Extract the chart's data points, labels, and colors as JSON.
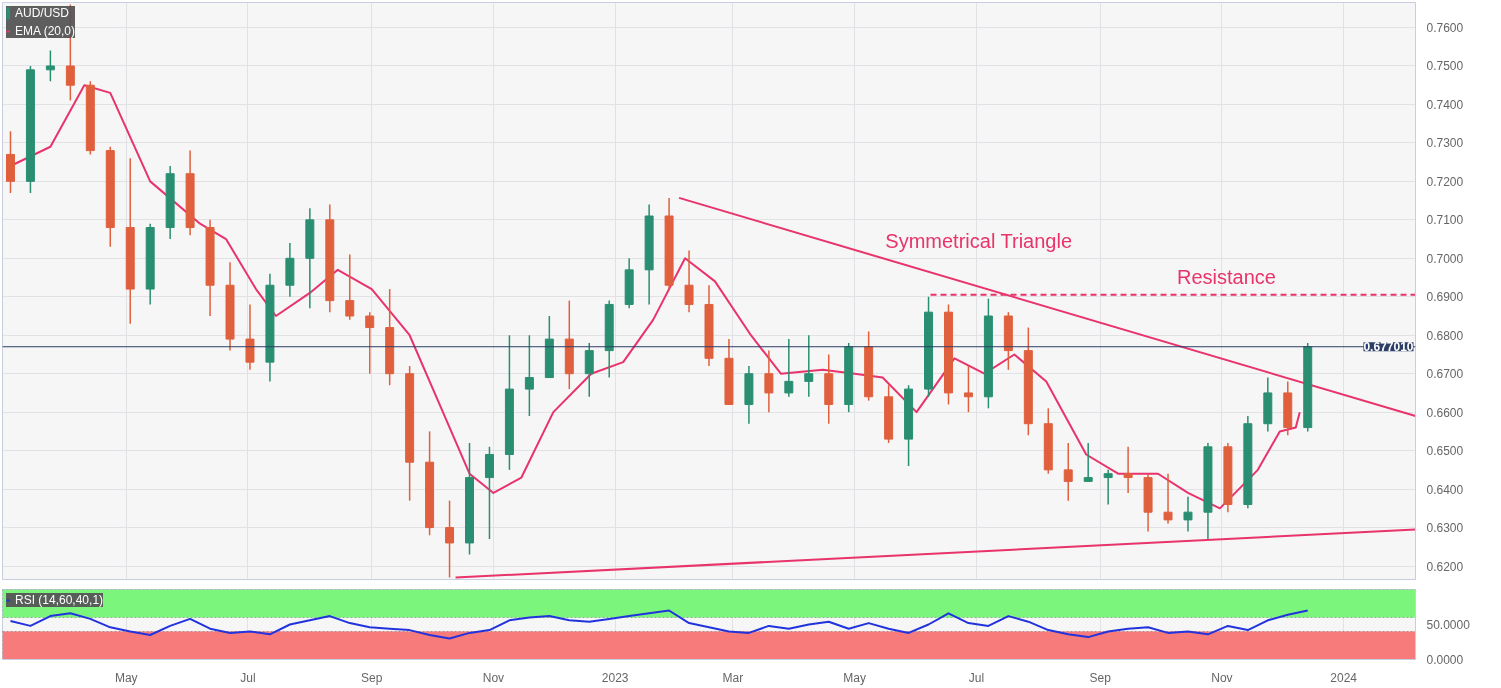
{
  "chart_data": [
    {
      "type": "candlestick",
      "legend": "top left",
      "grid": true,
      "tick_labels": "y",
      "xlim": [
        "2022-02-28",
        "2024-02-06"
      ],
      "ylim": [
        0.6165,
        0.7665
      ],
      "yticks": [
        {
          "value": 0.62,
          "label": "0.6200"
        },
        {
          "value": 0.63,
          "label": "0.6300"
        },
        {
          "value": 0.64,
          "label": "0.6400"
        },
        {
          "value": 0.65,
          "label": "0.6500"
        },
        {
          "value": 0.66,
          "label": "0.6600"
        },
        {
          "value": 0.67,
          "label": "0.6700"
        },
        {
          "value": 0.68,
          "label": "0.6800"
        },
        {
          "value": 0.69,
          "label": "0.6900"
        },
        {
          "value": 0.7,
          "label": "0.7000"
        },
        {
          "value": 0.71,
          "label": "0.7100"
        },
        {
          "value": 0.72,
          "label": "0.7200"
        },
        {
          "value": 0.73,
          "label": "0.7300"
        },
        {
          "value": 0.74,
          "label": "0.7400"
        },
        {
          "value": 0.75,
          "label": "0.7500"
        },
        {
          "value": 0.76,
          "label": "0.7600"
        }
      ],
      "xticks": [
        {
          "value": "2022-05-01",
          "label": null
        },
        {
          "value": "2022-07-01",
          "label": null
        },
        {
          "value": "2022-09-01",
          "label": null
        },
        {
          "value": "2022-11-01",
          "label": null
        },
        {
          "value": "2023-01-01",
          "label": null
        },
        {
          "value": "2023-03-01",
          "label": null
        },
        {
          "value": "2023-05-01",
          "label": null
        },
        {
          "value": "2023-07-01",
          "label": null
        },
        {
          "value": "2023-09-01",
          "label": null
        },
        {
          "value": "2023-11-01",
          "label": null
        },
        {
          "value": "2024-01-01",
          "label": null
        }
      ],
      "ref_lines": [
        {
          "axis": "y",
          "value": 0.67701,
          "label": "0.677010",
          "color": "#2c3e66"
        }
      ],
      "annotations": [
        "Symmetrical Triangle",
        "Resistance"
      ],
      "series": [
        {
          "type": "candlestick",
          "name": "AUD/USD",
          "color": "#2a8f72",
          "x": [
            "2022-03-04",
            "2022-03-14",
            "2022-03-24",
            "2022-04-03",
            "2022-04-13",
            "2022-04-23",
            "2022-05-03",
            "2022-05-13",
            "2022-05-23",
            "2022-06-02",
            "2022-06-12",
            "2022-06-22",
            "2022-07-02",
            "2022-07-12",
            "2022-07-22",
            "2022-08-01",
            "2022-08-11",
            "2022-08-21",
            "2022-08-31",
            "2022-09-10",
            "2022-09-20",
            "2022-09-30",
            "2022-10-10",
            "2022-10-20",
            "2022-10-30",
            "2022-11-09",
            "2022-11-19",
            "2022-11-29",
            "2022-12-09",
            "2022-12-19",
            "2022-12-29",
            "2023-01-08",
            "2023-01-18",
            "2023-01-28",
            "2023-02-07",
            "2023-02-17",
            "2023-02-27",
            "2023-03-09",
            "2023-03-19",
            "2023-03-29",
            "2023-04-08",
            "2023-04-18",
            "2023-04-28",
            "2023-05-08",
            "2023-05-18",
            "2023-05-28",
            "2023-06-07",
            "2023-06-17",
            "2023-06-27",
            "2023-07-07",
            "2023-07-17",
            "2023-07-27",
            "2023-08-06",
            "2023-08-16",
            "2023-08-26",
            "2023-09-05",
            "2023-09-15",
            "2023-09-25",
            "2023-10-05",
            "2023-10-15",
            "2023-10-25",
            "2023-11-04",
            "2023-11-14",
            "2023-11-24",
            "2023-12-04",
            "2023-12-14"
          ],
          "ohlc": [
            [
              0.727,
              0.733,
              0.717,
              0.72
            ],
            [
              0.72,
              0.75,
              0.717,
              0.749
            ],
            [
              0.749,
              0.754,
              0.746,
              0.75
            ],
            [
              0.75,
              0.766,
              0.741,
              0.745
            ],
            [
              0.745,
              0.746,
              0.727,
              0.728
            ],
            [
              0.728,
              0.729,
              0.703,
              0.708
            ],
            [
              0.708,
              0.726,
              0.683,
              0.692
            ],
            [
              0.692,
              0.709,
              0.688,
              0.708
            ],
            [
              0.708,
              0.724,
              0.705,
              0.722
            ],
            [
              0.722,
              0.728,
              0.706,
              0.708
            ],
            [
              0.708,
              0.71,
              0.685,
              0.693
            ],
            [
              0.693,
              0.699,
              0.676,
              0.679
            ],
            [
              0.679,
              0.688,
              0.671,
              0.673
            ],
            [
              0.673,
              0.696,
              0.668,
              0.693
            ],
            [
              0.693,
              0.704,
              0.69,
              0.7
            ],
            [
              0.7,
              0.713,
              0.687,
              0.71
            ],
            [
              0.71,
              0.714,
              0.686,
              0.689
            ],
            [
              0.689,
              0.701,
              0.684,
              0.685
            ],
            [
              0.685,
              0.686,
              0.67,
              0.682
            ],
            [
              0.682,
              0.692,
              0.667,
              0.67
            ],
            [
              0.67,
              0.672,
              0.637,
              0.647
            ],
            [
              0.647,
              0.655,
              0.628,
              0.63
            ],
            [
              0.63,
              0.637,
              0.617,
              0.626
            ],
            [
              0.626,
              0.652,
              0.623,
              0.643
            ],
            [
              0.643,
              0.651,
              0.627,
              0.649
            ],
            [
              0.649,
              0.68,
              0.645,
              0.666
            ],
            [
              0.666,
              0.68,
              0.659,
              0.669
            ],
            [
              0.669,
              0.685,
              0.669,
              0.679
            ],
            [
              0.679,
              0.689,
              0.666,
              0.67
            ],
            [
              0.67,
              0.678,
              0.664,
              0.676
            ],
            [
              0.676,
              0.689,
              0.669,
              0.688
            ],
            [
              0.688,
              0.7,
              0.687,
              0.697
            ],
            [
              0.697,
              0.714,
              0.688,
              0.711
            ],
            [
              0.711,
              0.7157,
              0.692,
              0.693
            ],
            [
              0.693,
              0.702,
              0.686,
              0.688
            ],
            [
              0.688,
              0.693,
              0.672,
              0.674
            ],
            [
              0.674,
              0.679,
              0.662,
              0.662
            ],
            [
              0.662,
              0.672,
              0.657,
              0.67
            ],
            [
              0.67,
              0.676,
              0.66,
              0.665
            ],
            [
              0.665,
              0.679,
              0.664,
              0.668
            ],
            [
              0.668,
              0.68,
              0.664,
              0.67
            ],
            [
              0.67,
              0.675,
              0.657,
              0.662
            ],
            [
              0.662,
              0.678,
              0.66,
              0.677
            ],
            [
              0.677,
              0.681,
              0.663,
              0.664
            ],
            [
              0.664,
              0.667,
              0.652,
              0.653
            ],
            [
              0.653,
              0.667,
              0.646,
              0.666
            ],
            [
              0.666,
              0.69,
              0.664,
              0.686
            ],
            [
              0.686,
              0.688,
              0.662,
              0.665
            ],
            [
              0.665,
              0.672,
              0.66,
              0.664
            ],
            [
              0.664,
              0.6895,
              0.661,
              0.685
            ],
            [
              0.685,
              0.686,
              0.671,
              0.676
            ],
            [
              0.676,
              0.682,
              0.654,
              0.657
            ],
            [
              0.657,
              0.661,
              0.644,
              0.645
            ],
            [
              0.645,
              0.652,
              0.637,
              0.642
            ],
            [
              0.642,
              0.652,
              0.642,
              0.643
            ],
            [
              0.643,
              0.645,
              0.636,
              0.644
            ],
            [
              0.644,
              0.651,
              0.639,
              0.643
            ],
            [
              0.643,
              0.644,
              0.629,
              0.634
            ],
            [
              0.634,
              0.644,
              0.631,
              0.632
            ],
            [
              0.632,
              0.638,
              0.629,
              0.634
            ],
            [
              0.634,
              0.652,
              0.627,
              0.651
            ],
            [
              0.651,
              0.652,
              0.634,
              0.636
            ],
            [
              0.636,
              0.659,
              0.635,
              0.657
            ],
            [
              0.657,
              0.669,
              0.655,
              0.665
            ],
            [
              0.665,
              0.668,
              0.654,
              0.656
            ],
            [
              0.656,
              0.678,
              0.655,
              0.677
            ]
          ],
          "colors": [
            "#e0603e",
            "#2a8f72",
            "#2a8f72",
            "#e0603e",
            "#e0603e",
            "#e0603e",
            "#e0603e",
            "#2a8f72",
            "#2a8f72",
            "#e0603e",
            "#e0603e",
            "#e0603e",
            "#e0603e",
            "#2a8f72",
            "#2a8f72",
            "#2a8f72",
            "#e0603e",
            "#e0603e",
            "#e0603e",
            "#e0603e",
            "#e0603e",
            "#e0603e",
            "#e0603e",
            "#2a8f72",
            "#2a8f72",
            "#2a8f72",
            "#2a8f72",
            "#2a8f72",
            "#e0603e",
            "#2a8f72",
            "#2a8f72",
            "#2a8f72",
            "#2a8f72",
            "#e0603e",
            "#e0603e",
            "#e0603e",
            "#e0603e",
            "#2a8f72",
            "#e0603e",
            "#2a8f72",
            "#2a8f72",
            "#e0603e",
            "#2a8f72",
            "#e0603e",
            "#e0603e",
            "#2a8f72",
            "#2a8f72",
            "#e0603e",
            "#e0603e",
            "#2a8f72",
            "#e0603e",
            "#e0603e",
            "#e0603e",
            "#e0603e",
            "#2a8f72",
            "#2a8f72",
            "#e0603e",
            "#e0603e",
            "#e0603e",
            "#2a8f72",
            "#2a8f72",
            "#e0603e",
            "#2a8f72",
            "#2a8f72",
            "#e0603e",
            "#2a8f72"
          ]
        },
        {
          "type": "line",
          "name": "EMA (20,0)",
          "color": "#e8336b",
          "x": [
            "2022-03-04",
            "2022-03-24",
            "2022-04-10",
            "2022-04-23",
            "2022-05-13",
            "2022-06-07",
            "2022-06-20",
            "2022-07-05",
            "2022-07-15",
            "2022-08-01",
            "2022-08-15",
            "2022-09-01",
            "2022-09-20",
            "2022-10-05",
            "2022-10-20",
            "2022-11-01",
            "2022-11-15",
            "2022-12-01",
            "2022-12-20",
            "2023-01-05",
            "2023-01-20",
            "2023-02-05",
            "2023-02-20",
            "2023-03-10",
            "2023-03-25",
            "2023-04-15",
            "2023-05-01",
            "2023-05-15",
            "2023-06-01",
            "2023-06-20",
            "2023-07-05",
            "2023-07-20",
            "2023-08-05",
            "2023-08-25",
            "2023-09-10",
            "2023-09-30",
            "2023-10-15",
            "2023-10-31",
            "2023-11-19",
            "2023-11-30",
            "2023-12-08",
            "2023-12-10"
          ],
          "values": [
            0.724,
            0.729,
            0.745,
            0.743,
            0.72,
            0.709,
            0.705,
            0.692,
            0.685,
            0.691,
            0.697,
            0.692,
            0.68,
            0.662,
            0.644,
            0.639,
            0.643,
            0.66,
            0.67,
            0.673,
            0.684,
            0.7,
            0.694,
            0.68,
            0.67,
            0.671,
            0.67,
            0.669,
            0.66,
            0.674,
            0.67,
            0.675,
            0.668,
            0.649,
            0.644,
            0.644,
            0.639,
            0.635,
            0.645,
            0.655,
            0.656,
            0.66
          ]
        },
        {
          "type": "line",
          "color": "#e8336b",
          "x": [
            "2023-02-02",
            "2024-02-06"
          ],
          "values": [
            0.7157,
            0.659
          ]
        },
        {
          "type": "line",
          "color": "#e8336b",
          "x": [
            "2022-10-13",
            "2024-02-06"
          ],
          "values": [
            0.617,
            0.6295
          ]
        },
        {
          "type": "line",
          "color": "#e8336b",
          "line_style": "dashed",
          "x": [
            "2023-06-08",
            "2024-02-06"
          ],
          "values": [
            0.6905,
            0.6905
          ]
        }
      ]
    },
    {
      "type": "line",
      "tick_labels": true,
      "grid": "x",
      "legend": "top left",
      "xlim": [
        "2022-02-28",
        "2024-02-06"
      ],
      "ylim": [
        0,
        100
      ],
      "yticks": [
        {
          "value": 0,
          "label": "0.0000"
        },
        {
          "value": 50,
          "label": "50.0000"
        }
      ],
      "xticks": [
        {
          "value": "2022-05-01",
          "label": "May"
        },
        {
          "value": "2022-07-01",
          "label": "Jul"
        },
        {
          "value": "2022-09-01",
          "label": "Sep"
        },
        {
          "value": "2022-11-01",
          "label": "Nov"
        },
        {
          "value": "2023-01-01",
          "label": "2023"
        },
        {
          "value": "2023-03-01",
          "label": "Mar"
        },
        {
          "value": "2023-05-01",
          "label": "May"
        },
        {
          "value": "2023-07-01",
          "label": "Jul"
        },
        {
          "value": "2023-09-01",
          "label": "Sep"
        },
        {
          "value": "2023-11-01",
          "label": "Nov"
        },
        {
          "value": "2024-01-01",
          "label": "2024"
        }
      ],
      "bands": [
        {
          "axis": "y",
          "from": 60,
          "to": 100,
          "color": "#7cf57c"
        },
        {
          "axis": "y",
          "from": 0,
          "to": 40,
          "color": "#f77b7b"
        }
      ],
      "series": [
        {
          "name": "RSI (14,60,40,1)",
          "color": "#2233dd",
          "x": [
            "2022-03-04",
            "2022-03-14",
            "2022-03-24",
            "2022-04-03",
            "2022-04-13",
            "2022-04-23",
            "2022-05-03",
            "2022-05-13",
            "2022-05-23",
            "2022-06-02",
            "2022-06-12",
            "2022-06-22",
            "2022-07-02",
            "2022-07-12",
            "2022-07-22",
            "2022-08-01",
            "2022-08-11",
            "2022-08-21",
            "2022-08-31",
            "2022-09-10",
            "2022-09-20",
            "2022-09-30",
            "2022-10-10",
            "2022-10-20",
            "2022-10-30",
            "2022-11-09",
            "2022-11-19",
            "2022-11-29",
            "2022-12-09",
            "2022-12-19",
            "2022-12-29",
            "2023-01-08",
            "2023-01-18",
            "2023-01-28",
            "2023-02-07",
            "2023-02-17",
            "2023-02-27",
            "2023-03-09",
            "2023-03-19",
            "2023-03-29",
            "2023-04-08",
            "2023-04-18",
            "2023-04-28",
            "2023-05-08",
            "2023-05-18",
            "2023-05-28",
            "2023-06-07",
            "2023-06-17",
            "2023-06-27",
            "2023-07-07",
            "2023-07-17",
            "2023-07-27",
            "2023-08-06",
            "2023-08-16",
            "2023-08-26",
            "2023-09-05",
            "2023-09-15",
            "2023-09-25",
            "2023-10-05",
            "2023-10-15",
            "2023-10-25",
            "2023-11-04",
            "2023-11-14",
            "2023-11-24",
            "2023-12-04",
            "2023-12-14"
          ],
          "values": [
            55,
            48,
            62,
            66,
            58,
            46,
            40,
            35,
            48,
            58,
            44,
            38,
            40,
            36,
            50,
            56,
            62,
            52,
            46,
            44,
            42,
            35,
            30,
            38,
            42,
            56,
            60,
            62,
            56,
            54,
            58,
            62,
            66,
            70,
            52,
            46,
            40,
            38,
            48,
            44,
            50,
            54,
            44,
            52,
            44,
            38,
            50,
            66,
            52,
            48,
            62,
            54,
            42,
            36,
            32,
            40,
            44,
            46,
            38,
            40,
            36,
            48,
            42,
            56,
            64,
            70
          ]
        }
      ]
    }
  ]
}
